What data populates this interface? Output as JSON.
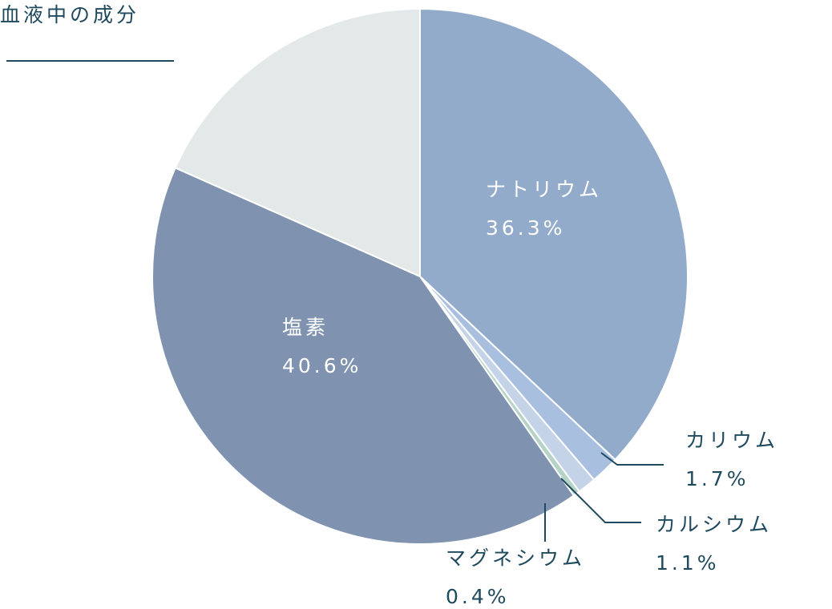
{
  "chart_data": {
    "type": "pie",
    "title": "血液中の成分",
    "categories": [
      "ナトリウム",
      "カリウム",
      "カルシウム",
      "マグネシウム",
      "塩素",
      null
    ],
    "values": [
      36.3,
      1.7,
      1.1,
      0.4,
      40.6,
      18
    ],
    "value_labels": [
      "36.3%",
      "1.7%",
      "1.1%",
      "0.4%",
      "40.6%",
      null
    ],
    "colors": [
      "#93abca",
      "#a8bfe0",
      "#c5d3e8",
      "#b5d3c6",
      "#7f93b0",
      "#e3e8e9"
    ]
  }
}
